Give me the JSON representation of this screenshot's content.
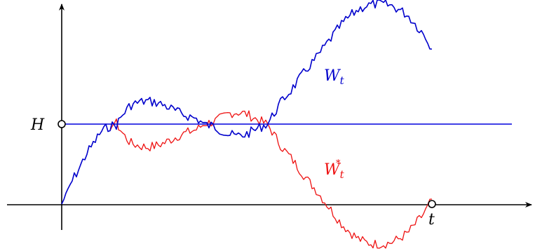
{
  "labels": {
    "barrier": "H",
    "time": "t",
    "process_symbol": "W",
    "process_subscript": "t",
    "reflected_symbol": "W",
    "reflected_subscript": "t",
    "reflected_superscript": "*"
  },
  "colors": {
    "axis": "#000000",
    "barrier_line": "#0000dd",
    "process": "#0000cc",
    "reflected": "#ee1111"
  },
  "chart_data": {
    "type": "line",
    "barrier_level": 1,
    "end_time": 1,
    "xlim": [
      0,
      1
    ],
    "ylim": [
      -0.5,
      1.5
    ],
    "series": [
      {
        "name": "W_t",
        "kind": "process"
      },
      {
        "name": "W_t^*",
        "kind": "reflected"
      }
    ]
  }
}
